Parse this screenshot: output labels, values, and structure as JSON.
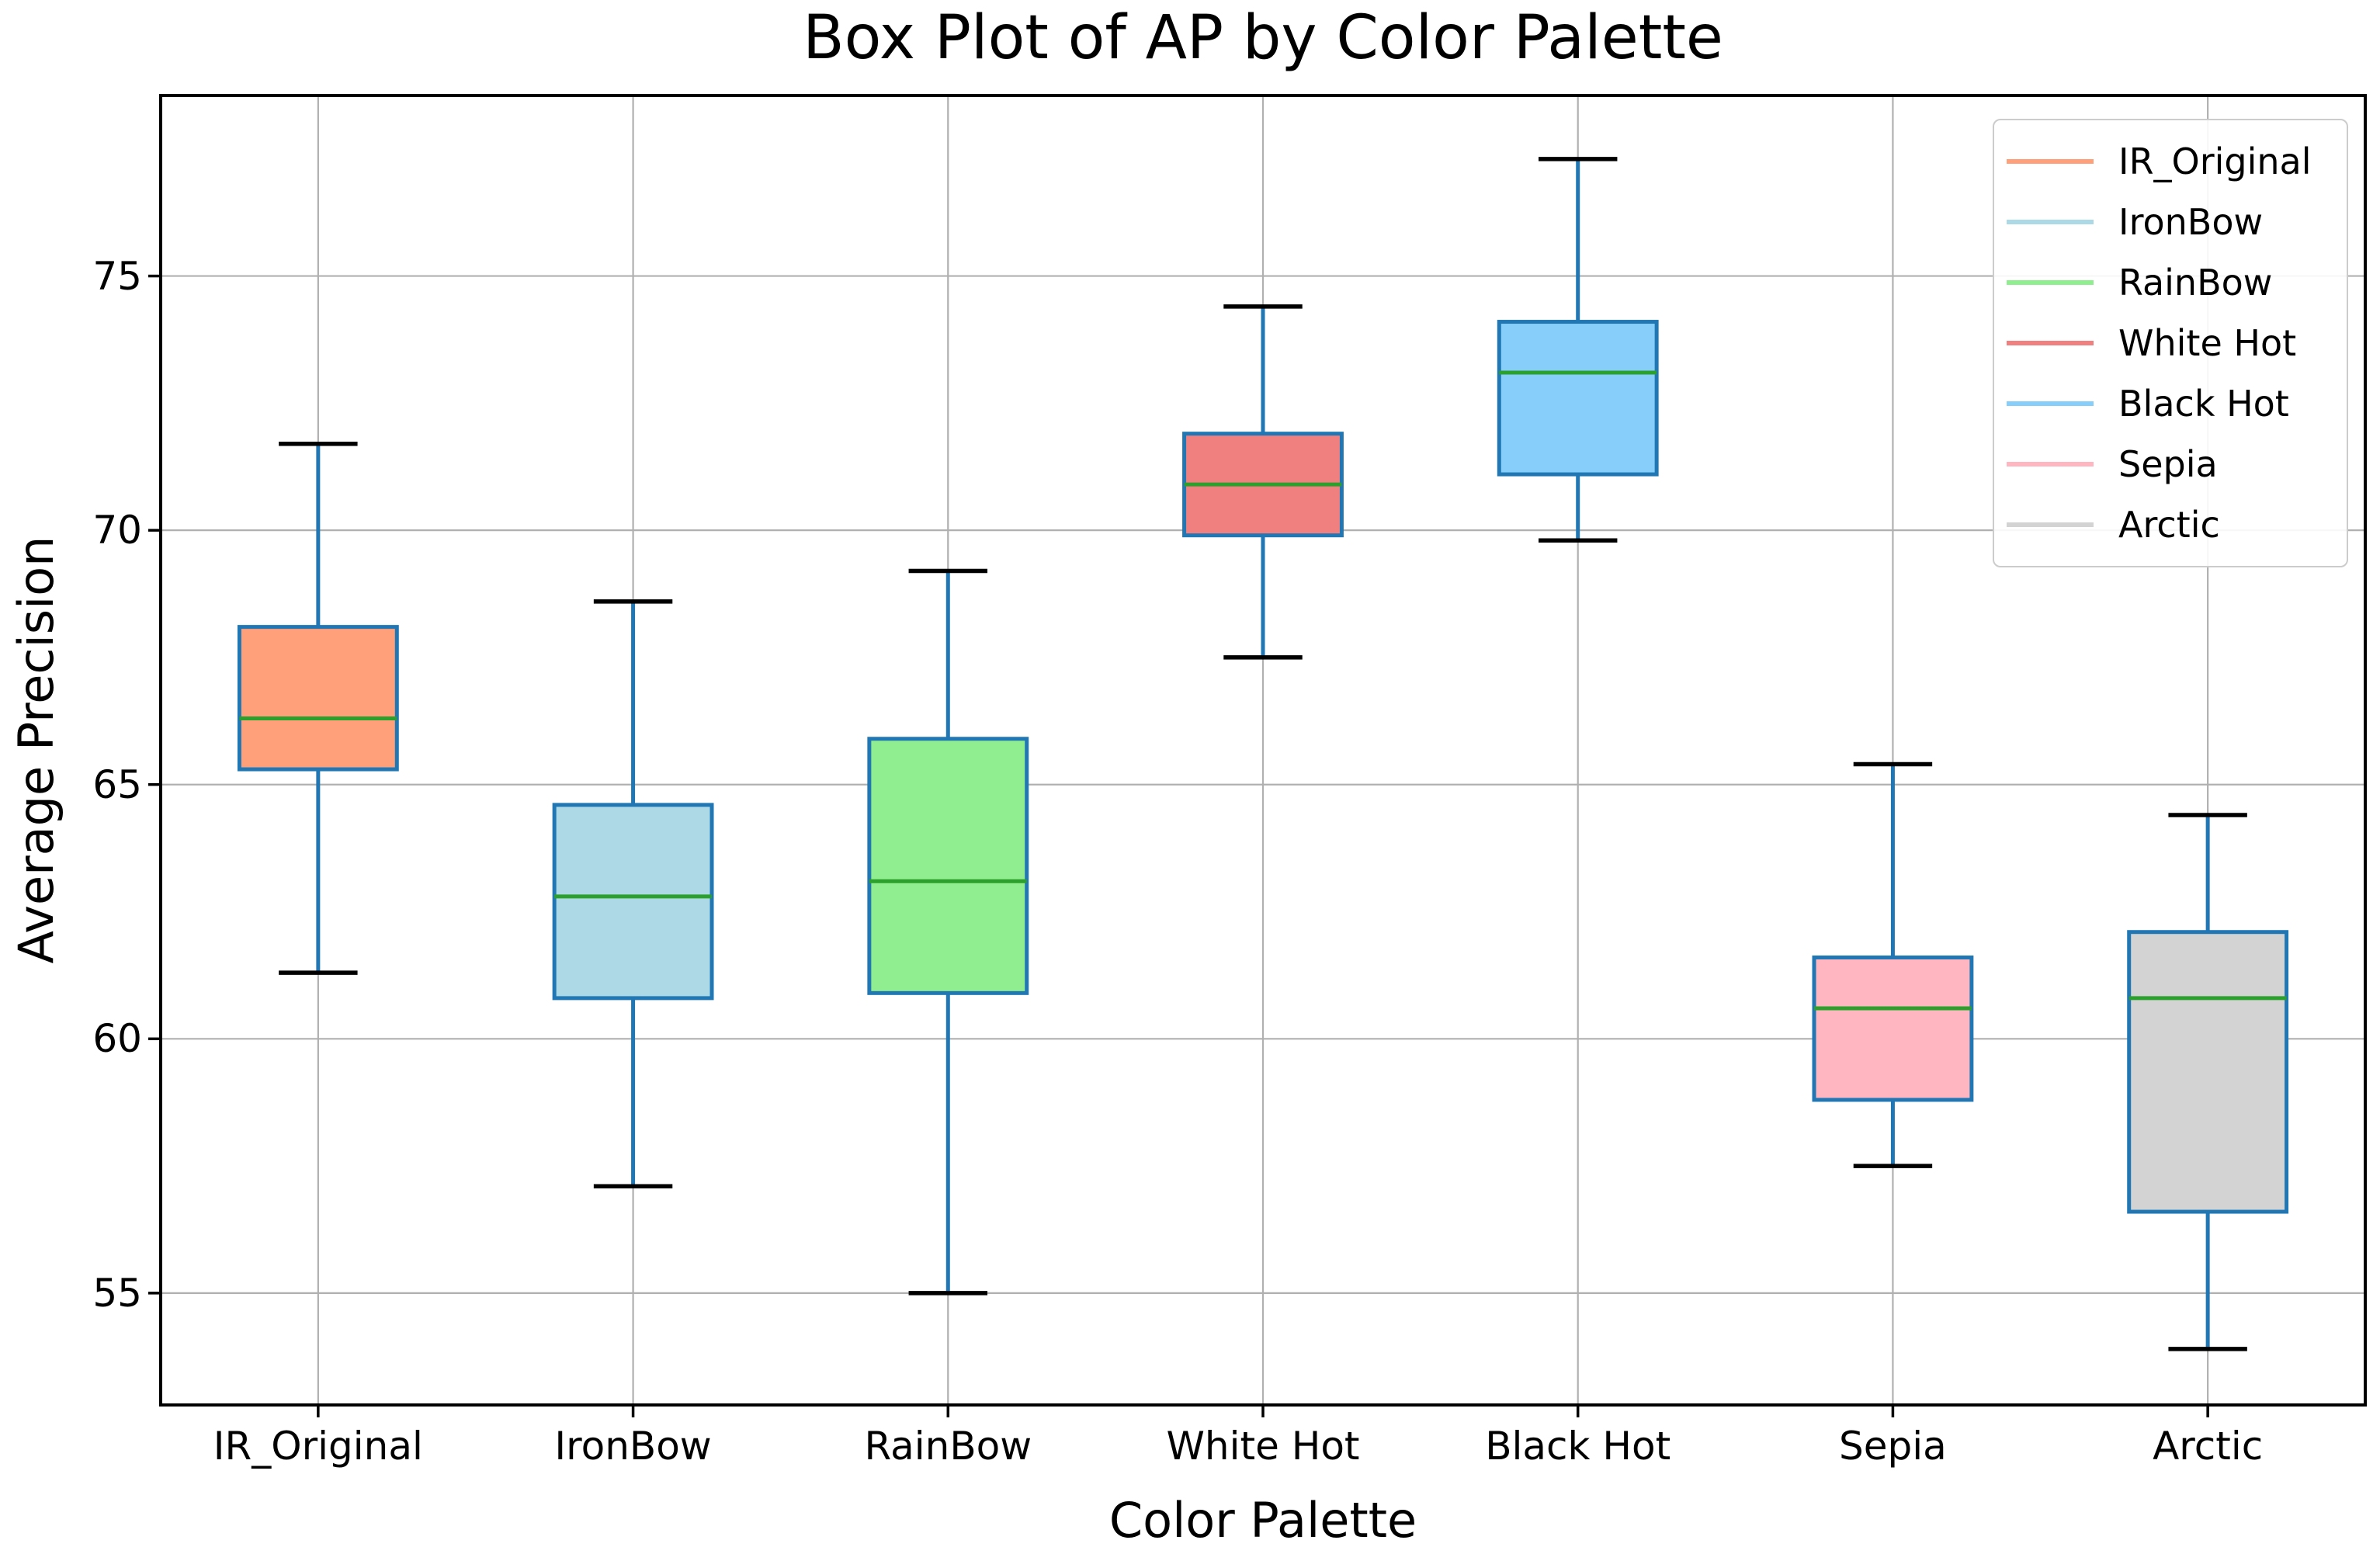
{
  "figure": {
    "title": "Box Plot of AP by Color Palette",
    "xlabel": "Color Palette",
    "ylabel": "Average Precision"
  },
  "chart_data": {
    "type": "box",
    "title": "Box Plot of AP by Color Palette",
    "xlabel": "Color Palette",
    "ylabel": "Average Precision",
    "categories": [
      "IR_Original",
      "IronBow",
      "RainBow",
      "White Hot",
      "Black Hot",
      "Sepia",
      "Arctic"
    ],
    "y_ticks": [
      55,
      60,
      65,
      70,
      75
    ],
    "ylim": [
      52.8,
      78.55
    ],
    "grid": true,
    "legend_position": "upper right",
    "legend_entries": [
      "IR_Original",
      "IronBow",
      "RainBow",
      "White Hot",
      "Black Hot",
      "Sepia",
      "Arctic"
    ],
    "series": [
      {
        "name": "IR_Original",
        "fill": "#FFA07A",
        "whisker_low": 61.3,
        "q1": 65.3,
        "median": 66.3,
        "q3": 68.1,
        "whisker_high": 71.7
      },
      {
        "name": "IronBow",
        "fill": "#ADD8E6",
        "whisker_low": 57.1,
        "q1": 60.8,
        "median": 62.8,
        "q3": 64.6,
        "whisker_high": 68.6
      },
      {
        "name": "RainBow",
        "fill": "#90EE90",
        "whisker_low": 55.0,
        "q1": 60.9,
        "median": 63.1,
        "q3": 65.9,
        "whisker_high": 69.2
      },
      {
        "name": "White Hot",
        "fill": "#F08080",
        "whisker_low": 67.5,
        "q1": 69.9,
        "median": 70.9,
        "q3": 71.9,
        "whisker_high": 74.4
      },
      {
        "name": "Black Hot",
        "fill": "#87CEFA",
        "whisker_low": 69.8,
        "q1": 71.1,
        "median": 73.1,
        "q3": 74.1,
        "whisker_high": 77.3
      },
      {
        "name": "Sepia",
        "fill": "#FFB6C1",
        "whisker_low": 57.5,
        "q1": 58.8,
        "median": 60.6,
        "q3": 61.6,
        "whisker_high": 65.4
      },
      {
        "name": "Arctic",
        "fill": "#D3D3D3",
        "whisker_low": 53.9,
        "q1": 56.6,
        "median": 60.8,
        "q3": 62.1,
        "whisker_high": 64.4
      }
    ],
    "style": {
      "box_edge": "#2077b4",
      "whisker": "#2077b4",
      "median": "#2ca02c",
      "cap": "#000000",
      "grid": "#b0b0b0",
      "spine": "#000000",
      "background": "#ffffff"
    }
  }
}
